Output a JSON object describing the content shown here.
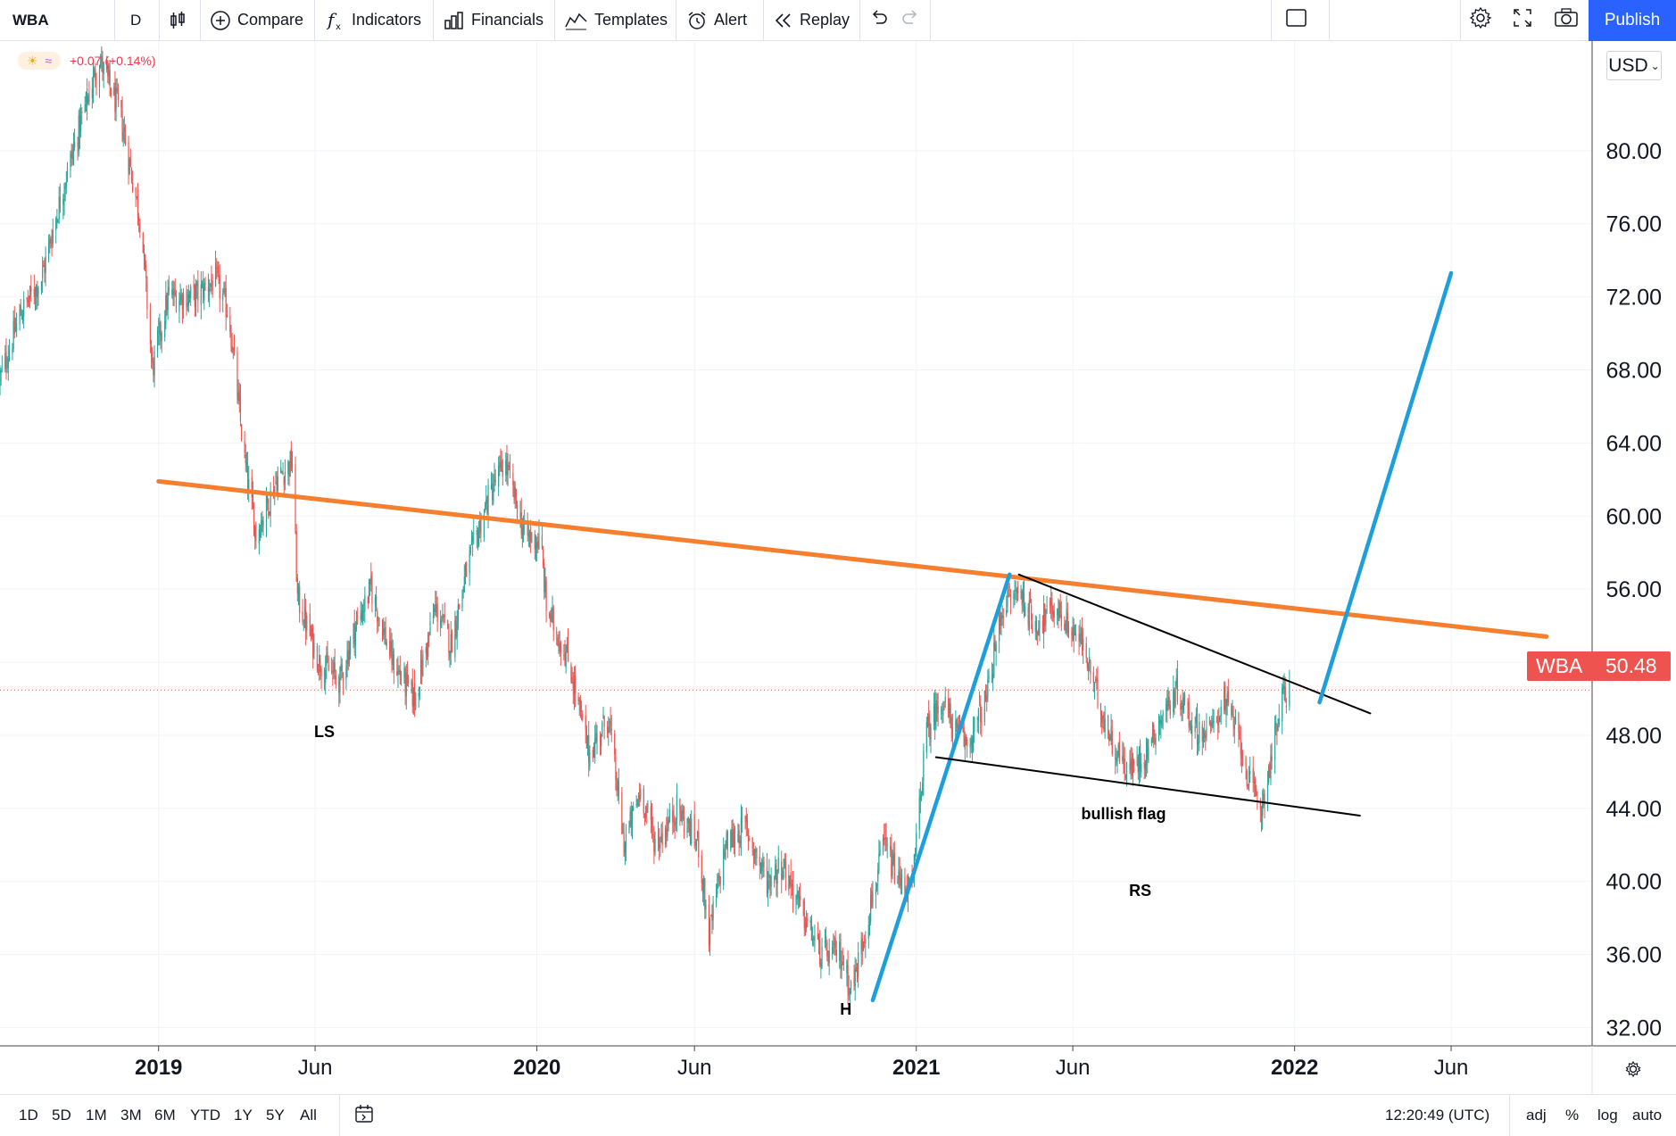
{
  "toolbar": {
    "symbol": "WBA",
    "interval": "D",
    "compare": "Compare",
    "indicators": "Indicators",
    "financials": "Financials",
    "templates": "Templates",
    "alert": "Alert",
    "replay": "Replay",
    "publish": "Publish"
  },
  "legend": {
    "change": "+0.07 (+0.14%)"
  },
  "currency": "USD",
  "price_tag": {
    "symbol": "WBA",
    "value": "50.48"
  },
  "bottombar": {
    "ranges": [
      "1D",
      "5D",
      "1M",
      "3M",
      "6M",
      "YTD",
      "1Y",
      "5Y",
      "All"
    ],
    "time": "12:20:49 (UTC)",
    "adj": "adj",
    "percent": "%",
    "log": "log",
    "auto": "auto"
  },
  "colors": {
    "up": "#26a69a",
    "down": "#ef5350",
    "neckline": "#f57f2e",
    "move_line": "#1e9fdc",
    "flag_line": "#000000",
    "accent": "#2962ff"
  },
  "chart_data": {
    "type": "candlestick",
    "symbol": "WBA",
    "interval": "D",
    "ylim": [
      31,
      86
    ],
    "yticks": [
      32,
      36,
      40,
      44,
      48,
      52,
      56,
      60,
      64,
      68,
      72,
      76,
      80
    ],
    "ytick_labels": [
      "32.00",
      "36.00",
      "40.00",
      "44.00",
      "48.00",
      "52.00",
      "56.00",
      "60.00",
      "64.00",
      "68.00",
      "72.00",
      "76.00",
      "80.00"
    ],
    "xlim": [
      "2018-08-01",
      "2022-10-15"
    ],
    "xticks": [
      {
        "date": "2019-01-01",
        "label": "2019",
        "major": true
      },
      {
        "date": "2019-06-01",
        "label": "Jun",
        "major": false
      },
      {
        "date": "2020-01-01",
        "label": "2020",
        "major": true
      },
      {
        "date": "2020-06-01",
        "label": "Jun",
        "major": false
      },
      {
        "date": "2021-01-01",
        "label": "2021",
        "major": true
      },
      {
        "date": "2021-06-01",
        "label": "Jun",
        "major": false
      },
      {
        "date": "2022-01-01",
        "label": "2022",
        "major": true
      },
      {
        "date": "2022-06-01",
        "label": "Jun",
        "major": false
      }
    ],
    "last_price": 50.48,
    "price_path": [
      [
        "2018-08-01",
        67.5
      ],
      [
        "2018-08-20",
        71
      ],
      [
        "2018-09-10",
        73
      ],
      [
        "2018-10-01",
        78
      ],
      [
        "2018-10-20",
        82
      ],
      [
        "2018-11-05",
        85
      ],
      [
        "2018-11-25",
        82
      ],
      [
        "2018-12-15",
        76
      ],
      [
        "2018-12-26",
        68
      ],
      [
        "2019-01-10",
        72
      ],
      [
        "2019-02-05",
        72
      ],
      [
        "2019-02-25",
        73
      ],
      [
        "2019-03-10",
        71
      ],
      [
        "2019-03-25",
        63
      ],
      [
        "2019-04-05",
        59
      ],
      [
        "2019-04-25",
        62
      ],
      [
        "2019-05-10",
        63
      ],
      [
        "2019-05-15",
        55.5
      ],
      [
        "2019-06-05",
        52
      ],
      [
        "2019-06-25",
        51
      ],
      [
        "2019-07-10",
        54
      ],
      [
        "2019-07-25",
        56
      ],
      [
        "2019-08-15",
        52
      ],
      [
        "2019-09-05",
        50
      ],
      [
        "2019-09-25",
        55
      ],
      [
        "2019-10-10",
        53
      ],
      [
        "2019-10-25",
        57
      ],
      [
        "2019-11-15",
        61
      ],
      [
        "2019-12-01",
        63
      ],
      [
        "2019-12-20",
        59
      ],
      [
        "2020-01-05",
        58.5
      ],
      [
        "2020-01-10",
        55
      ],
      [
        "2020-02-01",
        52
      ],
      [
        "2020-02-20",
        47
      ],
      [
        "2020-03-10",
        49
      ],
      [
        "2020-03-25",
        42
      ],
      [
        "2020-04-10",
        45
      ],
      [
        "2020-04-25",
        42
      ],
      [
        "2020-05-15",
        44
      ],
      [
        "2020-06-05",
        42
      ],
      [
        "2020-06-15",
        37
      ],
      [
        "2020-07-01",
        42
      ],
      [
        "2020-07-20",
        43
      ],
      [
        "2020-08-10",
        40
      ],
      [
        "2020-08-25",
        41
      ],
      [
        "2020-09-15",
        38
      ],
      [
        "2020-10-01",
        36
      ],
      [
        "2020-10-20",
        36
      ],
      [
        "2020-10-31",
        34
      ],
      [
        "2020-11-15",
        38
      ],
      [
        "2020-12-01",
        42
      ],
      [
        "2020-12-15",
        40
      ],
      [
        "2020-12-28",
        39.5
      ],
      [
        "2021-01-10",
        48
      ],
      [
        "2021-01-25",
        50
      ],
      [
        "2021-02-10",
        48
      ],
      [
        "2021-02-20",
        47.5
      ],
      [
        "2021-03-10",
        50
      ],
      [
        "2021-03-25",
        55
      ],
      [
        "2021-04-10",
        56
      ],
      [
        "2021-04-25",
        54
      ],
      [
        "2021-05-15",
        55
      ],
      [
        "2021-06-10",
        53
      ],
      [
        "2021-06-25",
        50
      ],
      [
        "2021-07-10",
        47.5
      ],
      [
        "2021-07-25",
        46
      ],
      [
        "2021-08-10",
        47
      ],
      [
        "2021-08-25",
        49
      ],
      [
        "2021-09-10",
        50.5
      ],
      [
        "2021-09-25",
        48.5
      ],
      [
        "2021-10-10",
        48
      ],
      [
        "2021-10-25",
        50
      ],
      [
        "2021-11-10",
        47.5
      ],
      [
        "2021-11-20",
        45
      ],
      [
        "2021-11-30",
        44
      ],
      [
        "2021-12-10",
        47
      ],
      [
        "2021-12-20",
        50
      ],
      [
        "2021-12-28",
        50.48
      ]
    ],
    "annotations": [
      {
        "text": "LS",
        "date": "2019-06-10",
        "price": 47.9
      },
      {
        "text": "H",
        "date": "2020-10-25",
        "price": 32.7
      },
      {
        "text": "bullish flag",
        "date": "2021-07-20",
        "price": 43.4
      },
      {
        "text": "RS",
        "date": "2021-08-05",
        "price": 39.2
      }
    ],
    "drawings": [
      {
        "name": "neckline",
        "color": "#f57f2e",
        "from": [
          "2019-01-01",
          61.9
        ],
        "to": [
          "2022-09-01",
          53.4
        ]
      },
      {
        "name": "flagpole",
        "color": "#1e9fdc",
        "from": [
          "2020-11-20",
          33.5
        ],
        "to": [
          "2021-04-01",
          56.8
        ]
      },
      {
        "name": "flag-upper",
        "color": "#000000",
        "from": [
          "2021-04-10",
          56.8
        ],
        "to": [
          "2022-03-15",
          49.2
        ]
      },
      {
        "name": "flag-lower",
        "color": "#000000",
        "from": [
          "2021-01-20",
          46.8
        ],
        "to": [
          "2022-03-05",
          43.6
        ]
      },
      {
        "name": "target-projection",
        "color": "#1e9fdc",
        "from": [
          "2022-01-25",
          49.8
        ],
        "to": [
          "2022-06-01",
          73.3
        ]
      }
    ]
  }
}
